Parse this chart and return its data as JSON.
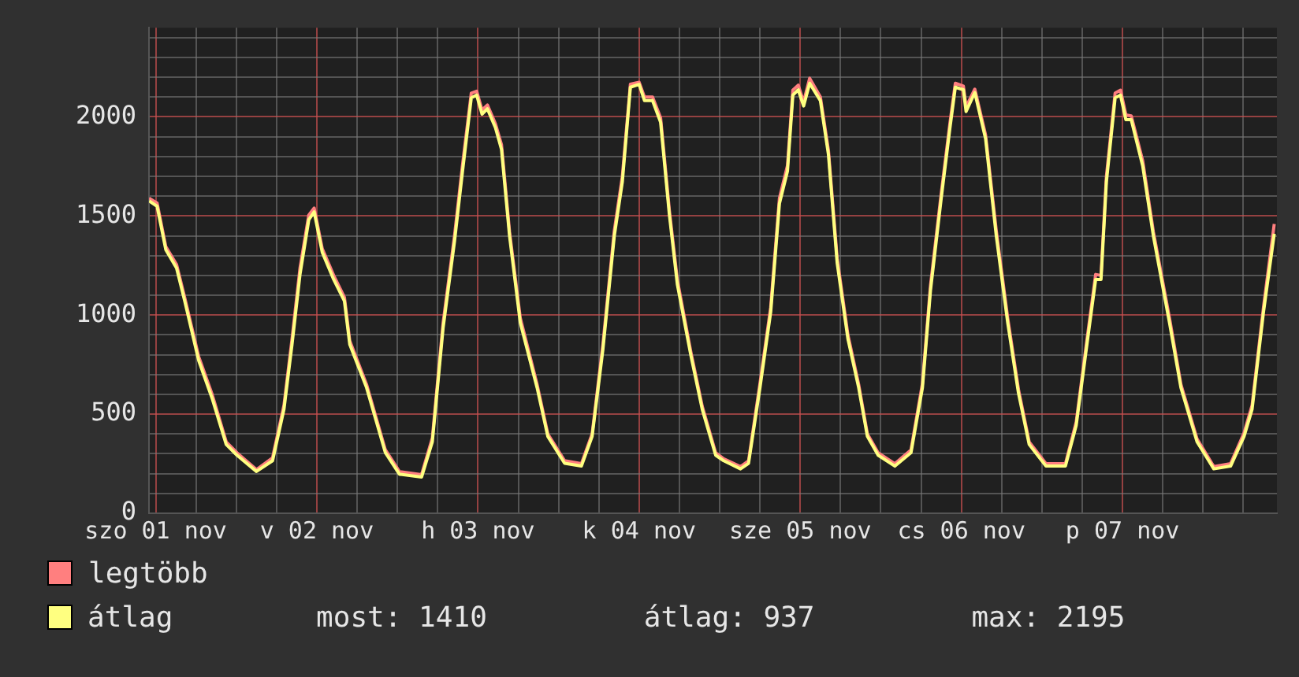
{
  "chart_data": {
    "type": "line",
    "x": [
      "--11-01T11:00",
      "--11-01T12:12",
      "--11-01T13:30",
      "--11-01T15:06",
      "--11-01T16:18",
      "--11-01T18:24",
      "--11-01T20:24",
      "--11-01T22:30",
      "--11-02T00:06",
      "--11-02T03:00",
      "--11-02T05:24",
      "--11-02T07:06",
      "--11-02T08:18",
      "--11-02T09:30",
      "--11-02T10:48",
      "--11-02T11:36",
      "--11-02T12:48",
      "--11-02T14:30",
      "--11-02T16:06",
      "--11-02T16:54",
      "--11-02T19:24",
      "--11-02T22:12",
      "--11-03T00:18",
      "--11-03T03:36",
      "--11-03T05:12",
      "--11-03T06:48",
      "--11-03T08:30",
      "--11-03T09:42",
      "--11-03T11:00",
      "--11-03T11:48",
      "--11-03T12:36",
      "--11-03T13:24",
      "--11-03T14:36",
      "--11-03T15:30",
      "--11-03T16:42",
      "--11-03T18:18",
      "--11-03T20:48",
      "--11-03T22:24",
      "--11-04T00:54",
      "--11-04T03:24",
      "--11-04T05:00",
      "--11-04T06:36",
      "--11-04T08:18",
      "--11-04T09:30",
      "--11-04T10:42",
      "--11-04T12:00",
      "--11-04T12:48",
      "--11-04T14:00",
      "--11-04T15:12",
      "--11-04T16:30",
      "--11-04T17:42",
      "--11-04T19:42",
      "--11-04T21:24",
      "--11-04T23:24",
      "--11-05T00:36",
      "--11-05T03:06",
      "--11-05T04:18",
      "--11-05T06:00",
      "--11-05T07:36",
      "--11-05T08:54",
      "--11-05T10:06",
      "--11-05T10:54",
      "--11-05T11:42",
      "--11-05T12:30",
      "--11-05T13:24",
      "--11-05T15:00",
      "--11-05T16:12",
      "--11-05T17:30",
      "--11-05T19:06",
      "--11-05T20:42",
      "--11-05T22:00",
      "--11-05T23:36",
      "--11-06T02:06",
      "--11-06T04:30",
      "--11-06T06:12",
      "--11-06T07:24",
      "--11-06T09:00",
      "--11-06T10:18",
      "--11-06T11:06",
      "--11-06T12:18",
      "--11-06T12:42",
      "--11-06T14:00",
      "--11-06T15:36",
      "--11-06T17:12",
      "--11-06T18:54",
      "--11-06T20:30",
      "--11-06T22:06",
      "--11-07T00:36",
      "--11-07T03:30",
      "--11-07T05:06",
      "--11-07T06:42",
      "--11-07T08:00",
      "--11-07T08:48",
      "--11-07T09:36",
      "--11-07T10:54",
      "--11-07T11:42",
      "--11-07T12:30",
      "--11-07T13:18",
      "--11-07T15:00",
      "--11-07T16:36",
      "--11-07T19:00",
      "--11-07T20:42",
      "--11-07T23:06",
      "--11-08T01:36",
      "--11-08T04:06",
      "--11-08T06:06",
      "--11-08T07:18",
      "--11-08T09:00",
      "--11-08T10:36"
    ],
    "series": [
      {
        "name": "legtöbb",
        "color": "#ff7f7f",
        "values": [
          1590,
          1565,
          1345,
          1255,
          1090,
          790,
          600,
          360,
          305,
          220,
          280,
          545,
          880,
          1240,
          1505,
          1540,
          1335,
          1200,
          1090,
          870,
          650,
          320,
          210,
          195,
          380,
          960,
          1400,
          1760,
          2120,
          2130,
          2035,
          2060,
          1965,
          1860,
          1420,
          985,
          650,
          400,
          265,
          250,
          400,
          850,
          1425,
          1700,
          2165,
          2175,
          2100,
          2100,
          1995,
          1530,
          1175,
          815,
          540,
          305,
          275,
          235,
          265,
          655,
          1040,
          1590,
          1755,
          2135,
          2160,
          2075,
          2195,
          2100,
          1830,
          1285,
          900,
          650,
          400,
          305,
          250,
          320,
          655,
          1150,
          1615,
          1970,
          2170,
          2155,
          2050,
          2140,
          1910,
          1425,
          985,
          625,
          360,
          250,
          250,
          460,
          875,
          1205,
          1200,
          1700,
          2120,
          2135,
          2010,
          2005,
          1780,
          1420,
          985,
          650,
          375,
          235,
          250,
          405,
          545,
          1040,
          1460
        ]
      },
      {
        "name": "átlag",
        "color": "#ffff80",
        "values": [
          1576,
          1549,
          1330,
          1237,
          1073,
          770,
          580,
          347,
          293,
          211,
          265,
          525,
          852,
          1208,
          1481,
          1521,
          1317,
          1180,
          1071,
          852,
          634,
          306,
          197,
          183,
          361,
          934,
          1371,
          1727,
          2096,
          2110,
          2014,
          2041,
          1945,
          1836,
          1399,
          961,
          634,
          388,
          252,
          238,
          388,
          825,
          1399,
          1672,
          2150,
          2164,
          2082,
          2082,
          1973,
          1508,
          1153,
          798,
          525,
          293,
          265,
          224,
          252,
          634,
          1016,
          1563,
          1727,
          2110,
          2137,
          2055,
          2170,
          2082,
          1809,
          1262,
          880,
          634,
          388,
          293,
          238,
          306,
          634,
          1125,
          1590,
          1945,
          2150,
          2137,
          2027,
          2123,
          1891,
          1399,
          961,
          607,
          347,
          238,
          238,
          443,
          852,
          1180,
          1180,
          1672,
          2096,
          2110,
          1986,
          1986,
          1754,
          1399,
          961,
          634,
          361,
          224,
          238,
          388,
          525,
          1016,
          1410
        ]
      }
    ],
    "xlim": [
      "--11-01T11:00",
      "--11-08T11:00"
    ],
    "xticks": [
      {
        "value": "--11-01T12:00",
        "label": "szo 01 nov"
      },
      {
        "value": "--11-01T18:00",
        "label": null
      },
      {
        "value": "--11-02T00:00",
        "label": null
      },
      {
        "value": "--11-02T06:00",
        "label": null
      },
      {
        "value": "--11-02T12:00",
        "label": "v 02 nov"
      },
      {
        "value": "--11-02T18:00",
        "label": null
      },
      {
        "value": "--11-03T00:00",
        "label": null
      },
      {
        "value": "--11-03T06:00",
        "label": null
      },
      {
        "value": "--11-03T12:00",
        "label": "h 03 nov"
      },
      {
        "value": "--11-03T18:00",
        "label": null
      },
      {
        "value": "--11-04T00:00",
        "label": null
      },
      {
        "value": "--11-04T06:00",
        "label": null
      },
      {
        "value": "--11-04T12:00",
        "label": "k 04 nov"
      },
      {
        "value": "--11-04T18:00",
        "label": null
      },
      {
        "value": "--11-05T00:00",
        "label": null
      },
      {
        "value": "--11-05T06:00",
        "label": null
      },
      {
        "value": "--11-05T12:00",
        "label": "sze 05 nov"
      },
      {
        "value": "--11-05T18:00",
        "label": null
      },
      {
        "value": "--11-06T00:00",
        "label": null
      },
      {
        "value": "--11-06T06:00",
        "label": null
      },
      {
        "value": "--11-06T12:00",
        "label": "cs 06 nov"
      },
      {
        "value": "--11-06T18:00",
        "label": null
      },
      {
        "value": "--11-07T00:00",
        "label": null
      },
      {
        "value": "--11-07T06:00",
        "label": null
      },
      {
        "value": "--11-07T12:00",
        "label": "p 07 nov"
      },
      {
        "value": "--11-07T18:00",
        "label": null
      },
      {
        "value": "--11-08T00:00",
        "label": null
      },
      {
        "value": "--11-08T06:00",
        "label": null
      }
    ],
    "ylim": [
      0,
      2450
    ],
    "yticks": [
      0,
      {
        "value": 100,
        "label": null
      },
      {
        "value": 200,
        "label": null
      },
      {
        "value": 300,
        "label": null
      },
      {
        "value": 400,
        "label": null
      },
      500,
      {
        "value": 600,
        "label": null
      },
      {
        "value": 700,
        "label": null
      },
      {
        "value": 800,
        "label": null
      },
      {
        "value": 900,
        "label": null
      },
      1000,
      {
        "value": 1100,
        "label": null
      },
      {
        "value": 1200,
        "label": null
      },
      {
        "value": 1300,
        "label": null
      },
      {
        "value": 1400,
        "label": null
      },
      1500,
      {
        "value": 1600,
        "label": null
      },
      {
        "value": 1700,
        "label": null
      },
      {
        "value": 1800,
        "label": null
      },
      {
        "value": 1900,
        "label": null
      },
      2000,
      {
        "value": 2100,
        "label": null
      },
      {
        "value": 2200,
        "label": null
      },
      {
        "value": 2300,
        "label": null
      },
      {
        "value": 2400,
        "label": null
      }
    ],
    "grid": true,
    "legend": "bottom",
    "marker": "none",
    "line_style": "solid",
    "annotations": [
      "most: 1410",
      "átlag: 937",
      "max: 2195"
    ]
  }
}
